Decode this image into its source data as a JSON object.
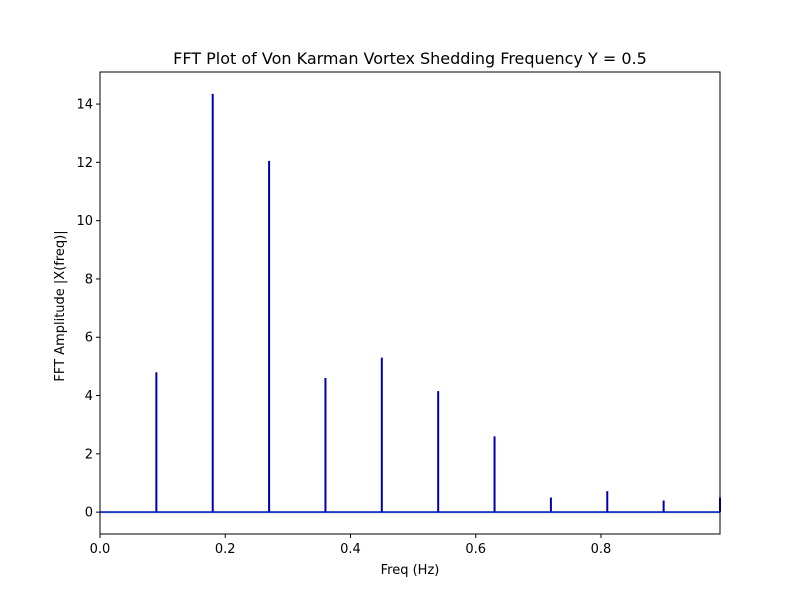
{
  "chart_data": {
    "type": "stem",
    "title": "FFT Plot of Von Karman Vortex Shedding Frequency Y = 0.5",
    "xlabel": "Freq (Hz)",
    "ylabel": "FFT Amplitude |X(freq)|",
    "xlim": [
      0.0,
      0.99
    ],
    "ylim": [
      -0.75,
      15.1
    ],
    "xticks": [
      0.0,
      0.2,
      0.4,
      0.6,
      0.8
    ],
    "xtick_labels": [
      "0.0",
      "0.2",
      "0.4",
      "0.6",
      "0.8"
    ],
    "yticks": [
      0,
      2,
      4,
      6,
      8,
      10,
      12,
      14
    ],
    "ytick_labels": [
      "0",
      "2",
      "4",
      "6",
      "8",
      "10",
      "12",
      "14"
    ],
    "grid": false,
    "line_color": "#0000aa",
    "baseline_color": "#1f3fbf",
    "x": [
      0.09,
      0.18,
      0.27,
      0.36,
      0.45,
      0.54,
      0.63,
      0.72,
      0.81,
      0.9,
      0.99
    ],
    "values": [
      4.8,
      14.35,
      12.05,
      4.6,
      5.3,
      4.15,
      2.6,
      0.5,
      0.72,
      0.4,
      0.5
    ]
  }
}
